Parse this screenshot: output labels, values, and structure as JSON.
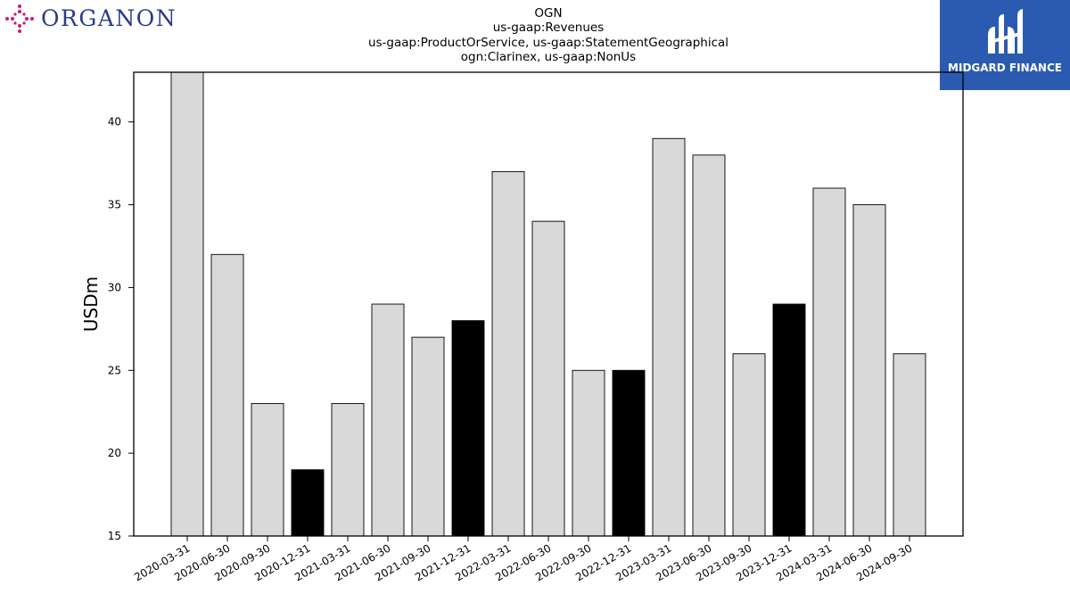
{
  "header": {
    "company_logo_text": "ORGANON",
    "brand_text": "MIDGARD FINANCE"
  },
  "colors": {
    "organon_text": "#2b3a8c",
    "organon_icon": "#d1166e",
    "brand_bg": "#2a5bb0",
    "bar_default": "#d9d9d9",
    "bar_highlight": "#000000"
  },
  "chart_data": {
    "type": "bar",
    "title_lines": [
      "OGN",
      "us-gaap:Revenues",
      "us-gaap:ProductOrService, us-gaap:StatementGeographical",
      "ogn:Clarinex, us-gaap:NonUs"
    ],
    "ylabel": "USDm",
    "xlabel": "",
    "ylim": [
      15,
      43
    ],
    "yticks": [
      15,
      20,
      25,
      30,
      35,
      40
    ],
    "grid": false,
    "categories": [
      "2020-03-31",
      "2020-06-30",
      "2020-09-30",
      "2020-12-31",
      "2021-03-31",
      "2021-06-30",
      "2021-09-30",
      "2021-12-31",
      "2022-03-31",
      "2022-06-30",
      "2022-09-30",
      "2022-12-31",
      "2023-03-31",
      "2023-06-30",
      "2023-09-30",
      "2023-12-31",
      "2024-03-31",
      "2024-06-30",
      "2024-09-30"
    ],
    "values": [
      43,
      32,
      23,
      19,
      23,
      29,
      27,
      28,
      37,
      34,
      25,
      25,
      39,
      38,
      26,
      29,
      36,
      35,
      26
    ],
    "highlighted": [
      false,
      false,
      false,
      true,
      false,
      false,
      false,
      true,
      false,
      false,
      false,
      true,
      false,
      false,
      false,
      true,
      false,
      false,
      false
    ]
  }
}
